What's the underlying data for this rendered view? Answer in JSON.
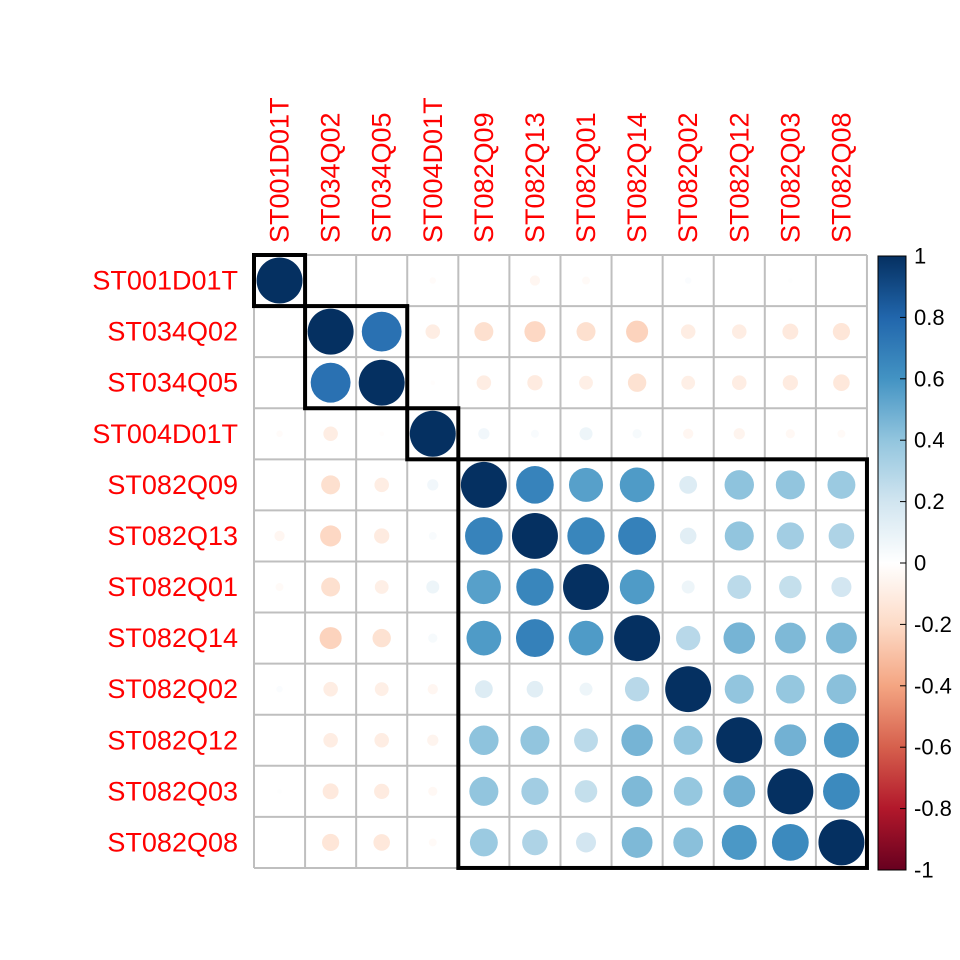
{
  "chart_data": {
    "type": "heatmap",
    "method": "circle",
    "variables": [
      "ST001D01T",
      "ST034Q02",
      "ST034Q05",
      "ST004D01T",
      "ST082Q09",
      "ST082Q13",
      "ST082Q01",
      "ST082Q14",
      "ST082Q02",
      "ST082Q12",
      "ST082Q03",
      "ST082Q08"
    ],
    "matrix": [
      [
        1.0,
        0.0,
        0.0,
        -0.02,
        0.0,
        -0.05,
        -0.03,
        0.0,
        0.02,
        0.0,
        0.01,
        0.0
      ],
      [
        0.0,
        1.0,
        0.75,
        -0.1,
        -0.17,
        -0.21,
        -0.17,
        -0.23,
        -0.1,
        -0.1,
        -0.12,
        -0.14
      ],
      [
        0.0,
        0.75,
        1.0,
        -0.01,
        -0.1,
        -0.11,
        -0.09,
        -0.16,
        -0.09,
        -0.1,
        -0.11,
        -0.13
      ],
      [
        -0.02,
        -0.1,
        -0.01,
        1.0,
        0.06,
        0.03,
        0.08,
        0.04,
        -0.05,
        -0.06,
        -0.04,
        -0.03
      ],
      [
        0.0,
        -0.17,
        -0.1,
        0.06,
        1.0,
        0.67,
        0.55,
        0.57,
        0.15,
        0.41,
        0.4,
        0.37
      ],
      [
        -0.05,
        -0.21,
        -0.11,
        0.03,
        0.67,
        1.0,
        0.66,
        0.68,
        0.13,
        0.4,
        0.35,
        0.31
      ],
      [
        -0.03,
        -0.17,
        -0.09,
        0.08,
        0.55,
        0.66,
        1.0,
        0.57,
        0.08,
        0.27,
        0.24,
        0.19
      ],
      [
        0.0,
        -0.23,
        -0.16,
        0.04,
        0.57,
        0.68,
        0.57,
        1.0,
        0.28,
        0.47,
        0.45,
        0.45
      ],
      [
        0.02,
        -0.1,
        -0.09,
        -0.05,
        0.15,
        0.13,
        0.08,
        0.28,
        1.0,
        0.4,
        0.39,
        0.42
      ],
      [
        0.0,
        -0.1,
        -0.1,
        -0.06,
        0.41,
        0.4,
        0.27,
        0.47,
        0.4,
        1.0,
        0.48,
        0.58
      ],
      [
        0.01,
        -0.12,
        -0.11,
        -0.04,
        0.4,
        0.35,
        0.24,
        0.45,
        0.39,
        0.48,
        1.0,
        0.64
      ],
      [
        0.0,
        -0.14,
        -0.13,
        -0.03,
        0.37,
        0.31,
        0.19,
        0.45,
        0.42,
        0.58,
        0.64,
        1.0
      ]
    ],
    "clusters": [
      [
        0,
        0
      ],
      [
        1,
        2
      ],
      [
        3,
        3
      ],
      [
        4,
        11
      ]
    ],
    "colorbar": {
      "ticks": [
        "1",
        "0.8",
        "0.6",
        "0.4",
        "0.2",
        "0",
        "-0.2",
        "-0.4",
        "-0.6",
        "-0.8",
        "-1"
      ],
      "range": [
        -1,
        1
      ]
    },
    "label_color": "#ff0000",
    "grid": true,
    "grid_color": "#bfbfbf",
    "colors": {
      "negative_end": "#67001f",
      "mid": "#ffffff",
      "positive_end": "#053061"
    }
  }
}
